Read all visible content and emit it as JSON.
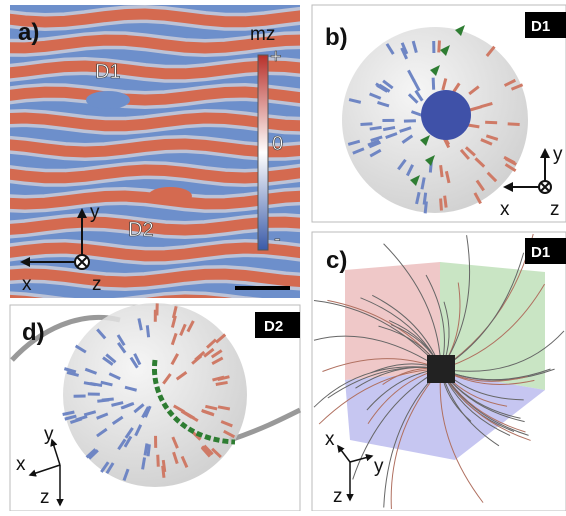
{
  "panels": [
    {
      "label": "a)",
      "annotations": [
        "D1",
        "D2"
      ],
      "colorbar": {
        "title": "mz",
        "ticks": [
          "+",
          "0",
          "-"
        ]
      },
      "axes": [
        "x",
        "y",
        "z"
      ]
    },
    {
      "label": "b)",
      "tag": "D1",
      "axes": [
        "x",
        "y",
        "z"
      ]
    },
    {
      "label": "c)",
      "tag": "D1",
      "axes": [
        "x",
        "y",
        "z"
      ]
    },
    {
      "label": "d)",
      "tag": "D2",
      "axes": [
        "x",
        "y",
        "z"
      ]
    }
  ]
}
